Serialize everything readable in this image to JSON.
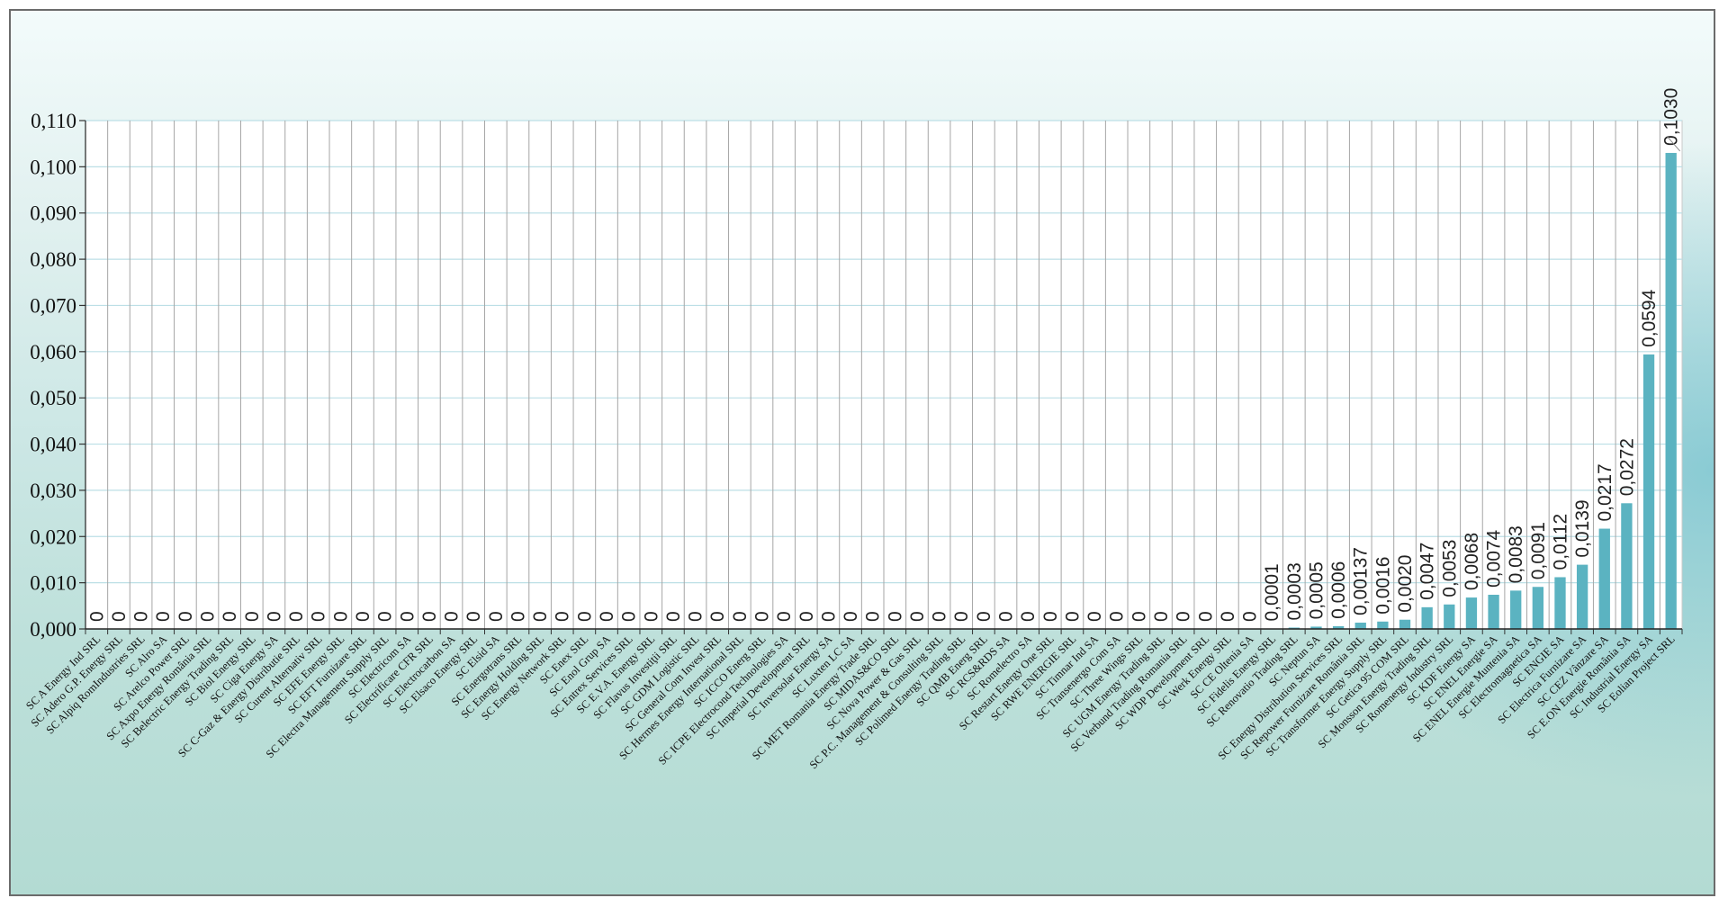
{
  "chart_data": {
    "type": "bar",
    "title": "",
    "xlabel": "",
    "ylabel": "",
    "ylim": [
      0,
      0.11
    ],
    "y_ticks": [
      "0,000",
      "0,010",
      "0,020",
      "0,030",
      "0,040",
      "0,050",
      "0,060",
      "0,070",
      "0,080",
      "0,090",
      "0,100",
      "0,110"
    ],
    "grid": true,
    "legend": "none",
    "bar_color": "#5bb3c1",
    "categories": [
      "SC A Energy Ind SRL",
      "SC Adero G.P. Energy SRL",
      "SC Alpiq RomIndustries SRL",
      "SC Alro SA",
      "SC Arelco Power SRL",
      "SC Axpo Energy România SRL",
      "SC Belectric Energy Trading SRL",
      "SC Biol Energy SRL",
      "SC Ciga Energy SA",
      "SC C-Gaz & Energy Distributie SRL",
      "SC Curent Alternativ SRL",
      "SC EFE Energy SRL",
      "SC EFT Furnizare SRL",
      "SC Electra Management Supply SRL",
      "SC Electricom SA",
      "SC Electrificare CFR SRL",
      "SC Electrocarbon SA",
      "SC Elsaco Energy SRL",
      "SC Elsid SA",
      "SC Energotrans SRL",
      "SC Energy Holding SRL",
      "SC Energy Network SRL",
      "SC Enex SRL",
      "SC Enol Grup SA",
      "SC Entrex Services SRL",
      "SC E.V.A. Energy SRL",
      "SC Flavus Investiţii SRL",
      "SC GDM Logistic SRL",
      "SC General Com Invest SRL",
      "SC Hermes Energy International SRL",
      "SC ICCO Energ SRL",
      "SC ICPE Electrocond Technologies SA",
      "SC Imperial Development SRL",
      "SC Inversolar Energy SA",
      "SC Luxten LC SA",
      "SC MET Romania Energy Trade SRL",
      "SC MIDAS&CO SRL",
      "SC Nova Power & Gas SRL",
      "SC P.C. Management & Consulting SRL",
      "SC Polimed Energy Trading SRL",
      "SC QMB Energ SRL",
      "SC RCS&RDS SA",
      "SC Romelectro SA",
      "SC Restart Energy One SRL",
      "SC RWE ENERGIE SRL",
      "SC Timnar Ind SA",
      "SC Transenergo Com SA",
      "SC Three Wings SRL",
      "SC UGM Energy Trading SRL",
      "SC Verbund Trading Romania SRL",
      "SC WDP Development SRL",
      "SC Werk Energy SRL",
      "SC CE Oltenia SA",
      "SC Fidelis Energy SRL",
      "SC Renovatio Trading SRL",
      "SC Neptun SA",
      "SC Energy Distribution Services SRL",
      "SC Repower Furnizare România  SRL",
      "SC Transformer Energy Supply SRL",
      "SC Getica 95 COM SRL",
      "SC Monsson Energy Trading SRL",
      "SC Romenergy Industry SRL",
      "SC KDF Energy SA",
      "SC ENEL Energie SA",
      "SC ENEL Energie Muntenia SA",
      "SC Electromagnetica SA",
      "SC ENGIE SA",
      "SC Electrica Furnizare SA",
      "SC CEZ Vânzare SA",
      "SC E.ON Energie România SA",
      "SC Industrial Energy SA",
      "SC Eolian Project SRL"
    ],
    "values": [
      0,
      0,
      0,
      0,
      0,
      0,
      0,
      0,
      0,
      0,
      0,
      0,
      0,
      0,
      0,
      0,
      0,
      0,
      0,
      0,
      0,
      0,
      0,
      0,
      0,
      0,
      0,
      0,
      0,
      0,
      0,
      0,
      0,
      0,
      0,
      0,
      0,
      0,
      0,
      0,
      0,
      0,
      0,
      0,
      0,
      0,
      0,
      0,
      0,
      0,
      0,
      0,
      0,
      0.0001,
      0.0003,
      0.0005,
      0.0006,
      0.00137,
      0.0016,
      0.002,
      0.0047,
      0.0053,
      0.0068,
      0.0074,
      0.0083,
      0.0091,
      0.0112,
      0.0139,
      0.0217,
      0.0272,
      0.0594,
      0.103
    ],
    "data_labels": [
      "0",
      "0",
      "0",
      "0",
      "0",
      "0",
      "0",
      "0",
      "0",
      "0",
      "0",
      "0",
      "0",
      "0",
      "0",
      "0",
      "0",
      "0",
      "0",
      "0",
      "0",
      "0",
      "0",
      "0",
      "0",
      "0",
      "0",
      "0",
      "0",
      "0",
      "0",
      "0",
      "0",
      "0",
      "0",
      "0",
      "0",
      "0",
      "0",
      "0",
      "0",
      "0",
      "0",
      "0",
      "0",
      "0",
      "0",
      "0",
      "0",
      "0",
      "0",
      "0",
      "0",
      "0,0001",
      "0,0003",
      "0,0005",
      "0,0006",
      "0,00137",
      "0,0016",
      "0,0020",
      "0,0047",
      "0,0053",
      "0,0068",
      "0,0074",
      "0,0083",
      "0,0091",
      "0,0112",
      "0,0139",
      "0,0217",
      "0,0272",
      "0,0594",
      "0,1030"
    ]
  }
}
